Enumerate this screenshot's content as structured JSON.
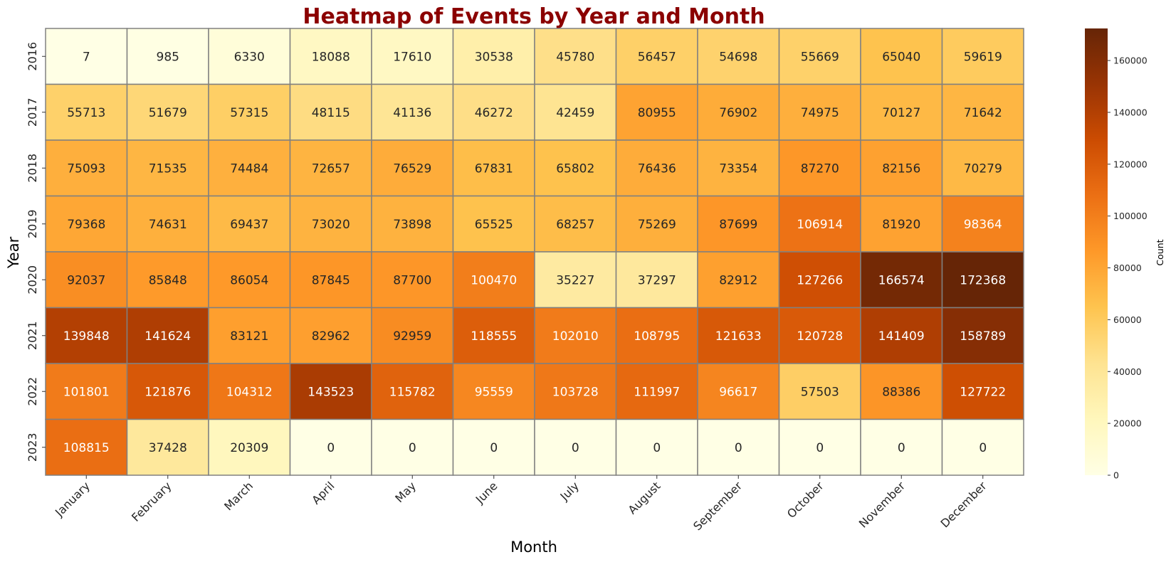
{
  "chart_data": {
    "type": "heatmap",
    "title": "Heatmap of Events by Year and Month",
    "xlabel": "Month",
    "ylabel": "Year",
    "x_categories": [
      "January",
      "February",
      "March",
      "April",
      "May",
      "June",
      "July",
      "August",
      "September",
      "October",
      "November",
      "December"
    ],
    "y_categories": [
      "2016",
      "2017",
      "2018",
      "2019",
      "2020",
      "2021",
      "2022",
      "2023"
    ],
    "values": [
      [
        7,
        985,
        6330,
        18088,
        17610,
        30538,
        45780,
        56457,
        54698,
        55669,
        65040,
        59619
      ],
      [
        55713,
        51679,
        57315,
        48115,
        41136,
        46272,
        42459,
        80955,
        76902,
        74975,
        70127,
        71642
      ],
      [
        75093,
        71535,
        74484,
        72657,
        76529,
        67831,
        65802,
        76436,
        73354,
        87270,
        82156,
        70279
      ],
      [
        79368,
        74631,
        69437,
        73020,
        73898,
        65525,
        68257,
        75269,
        87699,
        106914,
        81920,
        98364
      ],
      [
        92037,
        85848,
        86054,
        87845,
        87700,
        100470,
        35227,
        37297,
        82912,
        127266,
        166574,
        172368
      ],
      [
        139848,
        141624,
        83121,
        82962,
        92959,
        118555,
        102010,
        108795,
        121633,
        120728,
        141409,
        158789
      ],
      [
        101801,
        121876,
        104312,
        143523,
        115782,
        95559,
        103728,
        111997,
        96617,
        57503,
        88386,
        127722
      ],
      [
        108815,
        37428,
        20309,
        0,
        0,
        0,
        0,
        0,
        0,
        0,
        0,
        0
      ]
    ],
    "colorbar": {
      "label": "Count",
      "range": [
        0,
        172368
      ],
      "ticks": [
        0,
        20000,
        40000,
        60000,
        80000,
        100000,
        120000,
        140000,
        160000
      ]
    },
    "colormap": "YlOrBr",
    "annotated": true,
    "title_color": "#8b0000",
    "cell_border_color": "#808080"
  }
}
